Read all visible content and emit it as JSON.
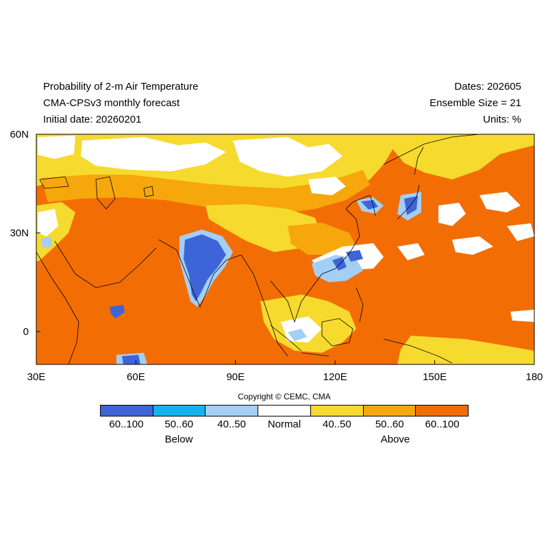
{
  "header": {
    "title": "Probability of 2-m Air Temperature",
    "model": "CMA-CPSv3 monthly forecast",
    "initial_date": "Initial date: 20260201",
    "dates": "Dates: 202605",
    "ensemble": "Ensemble Size = 21",
    "units": "Units: %"
  },
  "map": {
    "lon_range": [
      30,
      180
    ],
    "lat_range": [
      -10,
      60
    ],
    "x_ticks": [
      {
        "value": 30,
        "label": "30E"
      },
      {
        "value": 60,
        "label": "60E"
      },
      {
        "value": 90,
        "label": "90E"
      },
      {
        "value": 120,
        "label": "120E"
      },
      {
        "value": 150,
        "label": "150E"
      },
      {
        "value": 180,
        "label": "180"
      }
    ],
    "y_ticks": [
      {
        "value": 60,
        "label": "60N"
      },
      {
        "value": 30,
        "label": "30N"
      },
      {
        "value": 0,
        "label": "0"
      }
    ],
    "colors": {
      "below_60_100": "#3e65d8",
      "below_50_60": "#12b4f0",
      "below_40_50": "#a3cff5",
      "normal": "#ffffff",
      "above_40_50": "#f6da2e",
      "above_50_60": "#f5a70c",
      "above_60_100": "#f36d05"
    }
  },
  "copyright": "Copyright © CEMC, CMA",
  "legend": {
    "items": [
      {
        "label": "60..100",
        "color": "#3e65d8"
      },
      {
        "label": "50..60",
        "color": "#12b4f0"
      },
      {
        "label": "40..50",
        "color": "#a3cff5"
      },
      {
        "label": "Normal",
        "color": "#ffffff"
      },
      {
        "label": "40..50",
        "color": "#f6da2e"
      },
      {
        "label": "50..60",
        "color": "#f5a70c"
      },
      {
        "label": "60..100",
        "color": "#f36d05"
      }
    ],
    "below_label": "Below",
    "above_label": "Above"
  }
}
